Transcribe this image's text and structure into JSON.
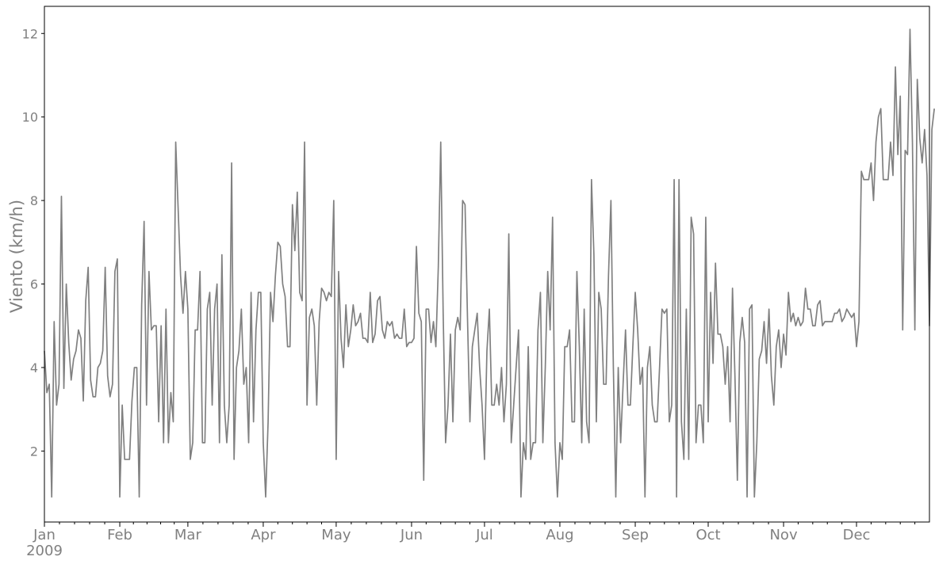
{
  "chart_data": {
    "type": "line",
    "title": "",
    "xlabel": "",
    "ylabel": "Viento (km/h)",
    "x_start": "2009-01-01",
    "x_end": "2009-12-31",
    "ylim": [
      0.3,
      12.65
    ],
    "yticks": [
      2,
      4,
      6,
      8,
      10,
      12
    ],
    "xticks": [
      {
        "date": "2009-01-01",
        "label": "Jan",
        "sublabel": "2009"
      },
      {
        "date": "2009-02-01",
        "label": "Feb"
      },
      {
        "date": "2009-03-01",
        "label": "Mar"
      },
      {
        "date": "2009-04-01",
        "label": "Apr"
      },
      {
        "date": "2009-05-01",
        "label": "May"
      },
      {
        "date": "2009-06-01",
        "label": "Jun"
      },
      {
        "date": "2009-07-01",
        "label": "Jul"
      },
      {
        "date": "2009-08-01",
        "label": "Aug"
      },
      {
        "date": "2009-09-01",
        "label": "Sep"
      },
      {
        "date": "2009-10-01",
        "label": "Oct"
      },
      {
        "date": "2009-11-01",
        "label": "Nov"
      },
      {
        "date": "2009-12-01",
        "label": "Dec"
      }
    ],
    "grid": false,
    "line_color": "#808080",
    "axis_color": "#000000",
    "text_color": "#808080",
    "series": [
      {
        "values": [
          4.4,
          3.4,
          3.6,
          0.9,
          5.1,
          3.1,
          3.6,
          8.1,
          3.5,
          6.0,
          4.6,
          3.7,
          4.2,
          4.4,
          4.9,
          4.7,
          3.2,
          5.6,
          6.4,
          3.7,
          3.3,
          3.3,
          4.0,
          4.1,
          4.4,
          6.4,
          3.8,
          3.3,
          3.6,
          6.3,
          6.6,
          0.9,
          3.1,
          1.8,
          1.8,
          1.8,
          3.2,
          4.0,
          4.0,
          0.9,
          5.5,
          7.5,
          3.1,
          6.3,
          4.9,
          5.0,
          5.0,
          2.7,
          5.0,
          2.2,
          5.4,
          2.2,
          3.4,
          2.7,
          9.4,
          7.8,
          6.2,
          5.3,
          6.3,
          5.4,
          1.8,
          2.2,
          4.9,
          4.9,
          6.3,
          2.2,
          2.2,
          5.4,
          5.8,
          3.1,
          5.4,
          6.0,
          2.2,
          6.7,
          3.1,
          2.2,
          3.1,
          8.9,
          1.8,
          4.0,
          4.4,
          5.4,
          3.6,
          4.0,
          2.2,
          5.8,
          2.7,
          4.9,
          5.8,
          5.8,
          2.2,
          0.9,
          2.7,
          5.8,
          5.1,
          6.2,
          7.0,
          6.9,
          6.0,
          5.7,
          4.5,
          4.5,
          7.9,
          6.8,
          8.2,
          5.8,
          5.6,
          9.4,
          3.1,
          5.2,
          5.4,
          5.0,
          3.1,
          5.1,
          5.9,
          5.8,
          5.6,
          5.8,
          5.7,
          8.0,
          1.8,
          6.3,
          4.7,
          4.0,
          5.5,
          4.5,
          4.9,
          5.5,
          5.0,
          5.1,
          5.3,
          4.7,
          4.7,
          4.6,
          5.8,
          4.6,
          4.8,
          5.6,
          5.7,
          4.9,
          4.7,
          5.1,
          5.0,
          5.1,
          4.7,
          4.8,
          4.7,
          4.7,
          5.4,
          4.5,
          4.6,
          4.6,
          4.7,
          6.9,
          5.3,
          5.1,
          1.3,
          5.4,
          5.4,
          4.6,
          5.1,
          4.5,
          6.4,
          9.4,
          5.3,
          2.2,
          3.1,
          4.8,
          2.7,
          4.9,
          5.2,
          4.9,
          8.0,
          7.9,
          5.2,
          2.7,
          4.5,
          4.9,
          5.3,
          4.0,
          3.1,
          1.8,
          4.4,
          5.4,
          3.1,
          3.1,
          3.6,
          3.1,
          4.0,
          2.7,
          3.6,
          7.2,
          2.2,
          3.1,
          4.0,
          4.9,
          0.9,
          2.2,
          1.8,
          4.5,
          1.8,
          2.2,
          2.2,
          4.9,
          5.8,
          2.2,
          4.0,
          6.3,
          4.9,
          7.6,
          2.2,
          0.9,
          2.2,
          1.8,
          4.5,
          4.5,
          4.9,
          2.7,
          2.7,
          6.3,
          4.5,
          2.2,
          5.4,
          2.7,
          2.2,
          8.5,
          6.7,
          2.7,
          5.8,
          5.4,
          3.6,
          3.6,
          6.2,
          8.0,
          4.0,
          0.9,
          4.0,
          2.2,
          3.6,
          4.9,
          3.1,
          3.1,
          4.5,
          5.8,
          4.9,
          3.6,
          4.0,
          0.9,
          4.0,
          4.5,
          3.1,
          2.7,
          2.7,
          4.0,
          5.4,
          5.3,
          5.4,
          2.7,
          3.1,
          8.5,
          0.9,
          8.5,
          2.7,
          1.8,
          5.4,
          1.8,
          7.6,
          7.2,
          2.2,
          3.1,
          3.1,
          2.2,
          7.6,
          2.7,
          5.8,
          4.1,
          6.5,
          4.8,
          4.8,
          4.5,
          3.6,
          4.5,
          2.7,
          5.9,
          3.8,
          1.3,
          4.6,
          5.2,
          4.6,
          0.9,
          5.4,
          5.5,
          0.9,
          2.2,
          4.2,
          4.4,
          5.1,
          4.1,
          5.4,
          3.8,
          3.1,
          4.5,
          4.9,
          4.0,
          4.8,
          4.3,
          5.8,
          5.1,
          5.3,
          5.0,
          5.2,
          5.0,
          5.1,
          5.9,
          5.4,
          5.4,
          5.0,
          5.0,
          5.5,
          5.6,
          5.0,
          5.1,
          5.1,
          5.1,
          5.1,
          5.3,
          5.3,
          5.4,
          5.1,
          5.2,
          5.4,
          5.3,
          5.2,
          5.3,
          4.5,
          5.1,
          8.7,
          8.5,
          8.5,
          8.5,
          8.9,
          8.0,
          9.4,
          10.0,
          10.2,
          8.5,
          8.5,
          8.5,
          9.4,
          8.6,
          11.2,
          9.1,
          10.5,
          4.9,
          9.2,
          9.1,
          12.1,
          9.4,
          4.9,
          10.9,
          9.5,
          8.9,
          9.7,
          8.6,
          5.0,
          9.7,
          10.2
        ]
      }
    ]
  }
}
